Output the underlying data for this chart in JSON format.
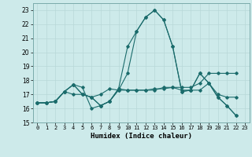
{
  "title": "",
  "xlabel": "Humidex (Indice chaleur)",
  "xlim": [
    -0.5,
    23.5
  ],
  "ylim": [
    15,
    23.5
  ],
  "yticks": [
    15,
    16,
    17,
    18,
    19,
    20,
    21,
    22,
    23
  ],
  "xticks": [
    0,
    1,
    2,
    3,
    4,
    5,
    6,
    7,
    8,
    9,
    10,
    11,
    12,
    13,
    14,
    15,
    16,
    17,
    18,
    19,
    20,
    21,
    22,
    23
  ],
  "background_color": "#cdeaea",
  "grid_color": "#b8d8d8",
  "line_color": "#1a6b6b",
  "lines": [
    [
      16.4,
      16.4,
      16.5,
      17.2,
      17.7,
      17.5,
      16.0,
      16.2,
      16.5,
      17.3,
      18.5,
      21.5,
      22.5,
      23.0,
      22.3,
      20.4,
      17.2,
      17.3,
      18.5,
      17.8,
      16.8,
      16.2,
      15.5
    ],
    [
      16.4,
      16.4,
      16.5,
      17.2,
      17.0,
      17.0,
      16.8,
      17.0,
      17.4,
      17.3,
      17.3,
      17.3,
      17.3,
      17.4,
      17.4,
      17.5,
      17.5,
      17.5,
      17.8,
      18.5,
      18.5,
      18.5,
      18.5
    ],
    [
      16.4,
      16.4,
      16.5,
      17.2,
      17.7,
      17.0,
      16.8,
      16.2,
      16.5,
      17.4,
      17.3,
      17.3,
      17.3,
      17.3,
      17.5,
      17.5,
      17.3,
      17.3,
      17.3,
      17.8,
      17.0,
      16.8,
      16.8
    ],
    [
      16.4,
      16.4,
      16.5,
      17.2,
      17.7,
      17.0,
      16.8,
      16.2,
      16.5,
      17.4,
      20.4,
      21.5,
      22.5,
      23.0,
      22.3,
      20.4,
      17.2,
      17.3,
      18.5,
      17.8,
      16.8,
      16.2,
      15.5
    ]
  ]
}
